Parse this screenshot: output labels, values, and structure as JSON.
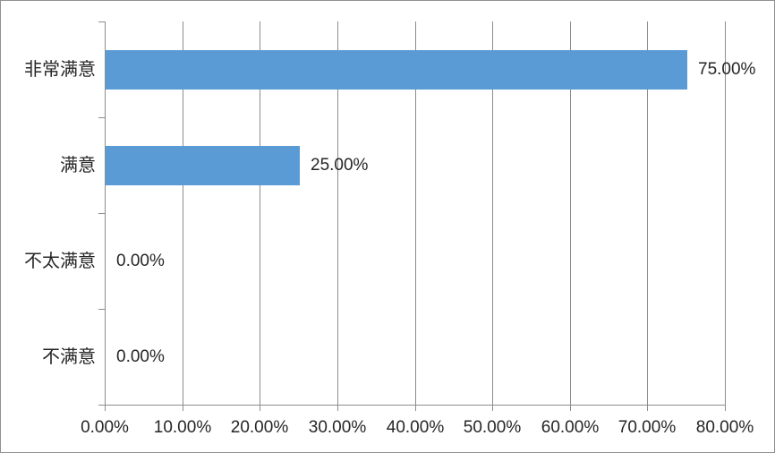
{
  "chart_data": {
    "type": "bar",
    "orientation": "horizontal",
    "title": "",
    "categories": [
      "非常满意",
      "满意",
      "不太满意",
      "不满意"
    ],
    "values": [
      75,
      25,
      0,
      0
    ],
    "data_labels": [
      "75.00%",
      "25.00%",
      "0.00%",
      "0.00%"
    ],
    "x_tick_values": [
      0,
      10,
      20,
      30,
      40,
      50,
      60,
      70,
      80
    ],
    "x_tick_labels": [
      "0.00%",
      "10.00%",
      "20.00%",
      "30.00%",
      "40.00%",
      "50.00%",
      "60.00%",
      "70.00%",
      "80.00%"
    ],
    "xlim": [
      0,
      80
    ],
    "xlabel": "",
    "ylabel": "",
    "grid": true,
    "legend": "none",
    "colors": {
      "bar": "#5B9BD5",
      "gridline": "#8C8C8C",
      "axis": "#8C8C8C",
      "text": "#262626",
      "chart_border": "#919191",
      "background": "#FFFFFF"
    }
  }
}
